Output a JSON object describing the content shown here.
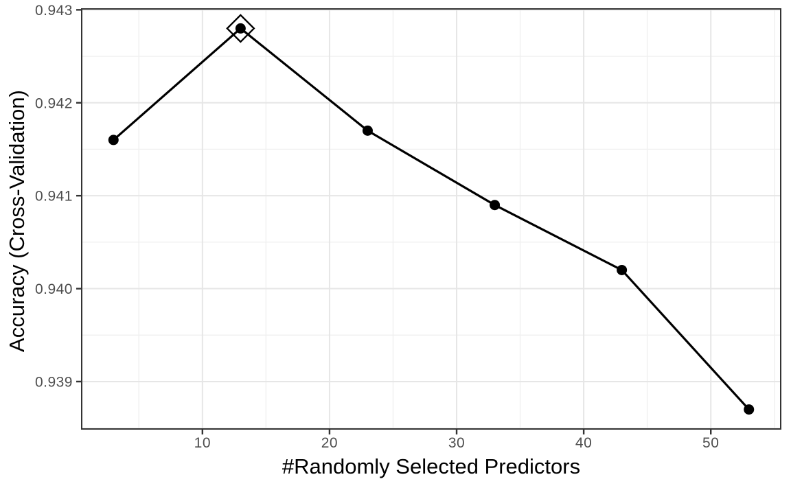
{
  "chart_data": {
    "type": "line",
    "title": "",
    "xlabel": "#Randomly Selected Predictors",
    "ylabel": "Accuracy (Cross-Validation)",
    "x": [
      3,
      13,
      23,
      33,
      43,
      53
    ],
    "y": [
      0.9416,
      0.9428,
      0.9417,
      0.9409,
      0.9402,
      0.9387
    ],
    "best_point": {
      "x": 13,
      "y": 0.9428,
      "marker": "open-diamond"
    },
    "xlim": [
      0.5,
      55.5
    ],
    "ylim": [
      0.93849,
      0.94301
    ],
    "x_ticks": {
      "values": [
        10,
        20,
        30,
        40,
        50
      ],
      "labels": [
        "10",
        "20",
        "30",
        "40",
        "50"
      ]
    },
    "y_ticks": {
      "values": [
        0.939,
        0.94,
        0.941,
        0.942,
        0.943
      ],
      "labels": [
        "0.939",
        "0.940",
        "0.941",
        "0.942",
        "0.943"
      ]
    },
    "x_minor_gridlines": [
      5,
      15,
      25,
      35,
      45,
      55
    ],
    "y_minor_gridlines": [
      0.9385,
      0.9395,
      0.9405,
      0.9415,
      0.9425
    ],
    "grid": true,
    "legend": "none",
    "style": {
      "background": "#ffffff",
      "panel_border": "#333333",
      "grid_major": "#e6e6e6",
      "grid_minor": "#f0f0f0",
      "line_color": "#000000",
      "point_color": "#000000",
      "best_marker_color": "#000000",
      "tick_mark_color": "#333333",
      "tick_label_color": "#4d4d4d",
      "axis_title_color": "#000000"
    }
  }
}
